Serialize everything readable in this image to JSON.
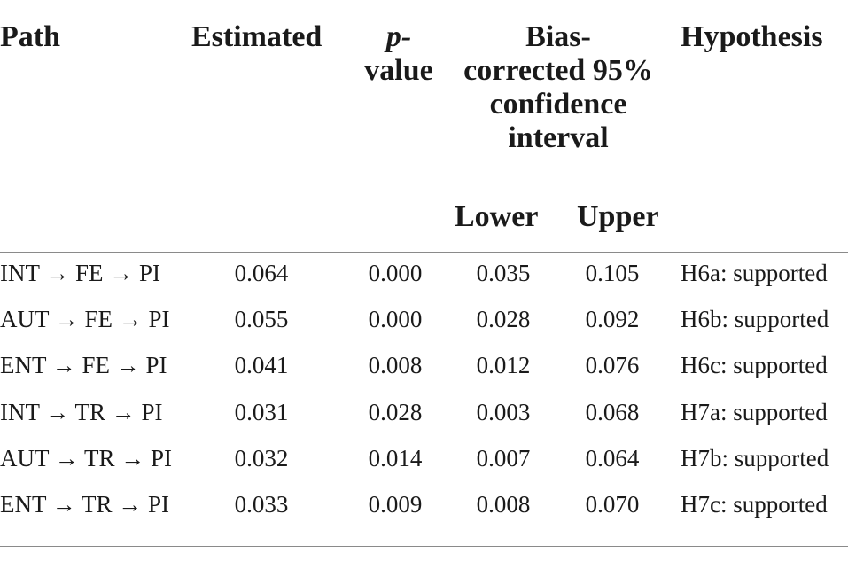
{
  "headers": {
    "path": "Path",
    "estimated": "Estimated",
    "p_value_1": "p-",
    "p_value_2": "value",
    "ci_1": "Bias-",
    "ci_2": "corrected 95%",
    "ci_3": "confidence",
    "ci_4": "interval",
    "lower": "Lower",
    "upper": "Upper",
    "hypothesis": "Hypothesis"
  },
  "rows": [
    {
      "path": "INT → FE → PI",
      "estimated": "0.064",
      "p": "0.000",
      "lower": "0.035",
      "upper": "0.105",
      "hypothesis": "H6a: supported"
    },
    {
      "path": "AUT → FE → PI",
      "estimated": "0.055",
      "p": "0.000",
      "lower": "0.028",
      "upper": "0.092",
      "hypothesis": "H6b: supported"
    },
    {
      "path": "ENT → FE → PI",
      "estimated": "0.041",
      "p": "0.008",
      "lower": "0.012",
      "upper": "0.076",
      "hypothesis": "H6c: supported"
    },
    {
      "path": "INT → TR → PI",
      "estimated": "0.031",
      "p": "0.028",
      "lower": "0.003",
      "upper": "0.068",
      "hypothesis": "H7a: supported"
    },
    {
      "path": "AUT → TR → PI",
      "estimated": "0.032",
      "p": "0.014",
      "lower": "0.007",
      "upper": "0.064",
      "hypothesis": "H7b: supported"
    },
    {
      "path": "ENT → TR → PI",
      "estimated": "0.033",
      "p": "0.009",
      "lower": "0.008",
      "upper": "0.070",
      "hypothesis": "H7c: supported"
    }
  ]
}
